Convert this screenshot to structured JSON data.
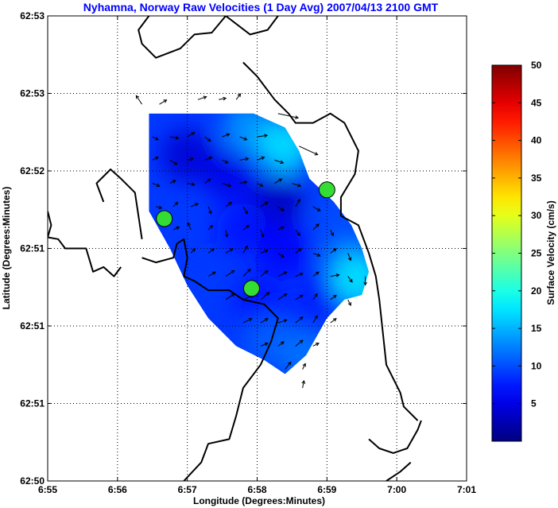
{
  "chart_data": {
    "type": "vector_field_map",
    "title": "Nyhamna, Norway Raw Velocities (1 Day Avg) 2007/04/13 2100 GMT",
    "title_color": "#0000ff",
    "xlabel": "Longitude (Degrees:Minutes)",
    "ylabel": "Latitude (Degrees:Minutes)",
    "x_ticks": [
      "6:55",
      "6:56",
      "6:57",
      "6:58",
      "6:59",
      "7:00",
      "7:01"
    ],
    "y_ticks": [
      "62:53",
      "62:53",
      "62:52",
      "62:51",
      "62:51",
      "62:51",
      "62:50"
    ],
    "xlim": [
      0,
      6
    ],
    "ylim": [
      0,
      5
    ],
    "grid": true,
    "colorbar": {
      "label": "Surface Velocity (cm/s)",
      "range": [
        0,
        50
      ],
      "ticks": [
        "5",
        "10",
        "15",
        "20",
        "25",
        "30",
        "35",
        "40",
        "45",
        "50"
      ],
      "colormap": "jet"
    },
    "coverage_polygon": [
      [
        1.45,
        3.95
      ],
      [
        2.95,
        3.95
      ],
      [
        3.4,
        3.8
      ],
      [
        3.6,
        3.55
      ],
      [
        3.75,
        3.25
      ],
      [
        4.1,
        3.0
      ],
      [
        4.35,
        2.75
      ],
      [
        4.5,
        2.5
      ],
      [
        4.6,
        2.25
      ],
      [
        4.5,
        2.0
      ],
      [
        4.25,
        1.95
      ],
      [
        4.0,
        1.75
      ],
      [
        3.7,
        1.35
      ],
      [
        3.4,
        1.15
      ],
      [
        3.1,
        1.3
      ],
      [
        2.7,
        1.45
      ],
      [
        2.3,
        1.75
      ],
      [
        2.0,
        2.1
      ],
      [
        1.75,
        2.5
      ],
      [
        1.45,
        2.9
      ]
    ],
    "velocity_blobs": [
      {
        "x": 2.0,
        "y": 3.5,
        "speed": 4
      },
      {
        "x": 2.6,
        "y": 3.3,
        "speed": 5
      },
      {
        "x": 3.3,
        "y": 3.0,
        "speed": 3
      },
      {
        "x": 2.8,
        "y": 2.7,
        "speed": 7
      },
      {
        "x": 3.4,
        "y": 2.5,
        "speed": 6
      },
      {
        "x": 2.4,
        "y": 2.1,
        "speed": 9
      },
      {
        "x": 3.0,
        "y": 1.95,
        "speed": 7
      },
      {
        "x": 3.7,
        "y": 1.8,
        "speed": 8
      },
      {
        "x": 4.1,
        "y": 2.1,
        "speed": 6
      },
      {
        "x": 3.2,
        "y": 1.5,
        "speed": 11
      },
      {
        "x": 2.9,
        "y": 3.8,
        "speed": 14
      },
      {
        "x": 3.4,
        "y": 3.6,
        "speed": 18
      },
      {
        "x": 4.3,
        "y": 2.35,
        "speed": 13
      },
      {
        "x": 4.45,
        "y": 2.15,
        "speed": 18
      },
      {
        "x": 4.15,
        "y": 2.85,
        "speed": 10
      },
      {
        "x": 3.7,
        "y": 1.35,
        "speed": 12
      }
    ],
    "vectors": [
      {
        "x": 1.35,
        "y": 4.05,
        "u": -0.4,
        "v": 0.6
      },
      {
        "x": 1.6,
        "y": 4.05,
        "u": 0.5,
        "v": 0.3
      },
      {
        "x": 2.15,
        "y": 4.1,
        "u": 0.6,
        "v": 0.2
      },
      {
        "x": 2.45,
        "y": 4.1,
        "u": 0.5,
        "v": 0.1
      },
      {
        "x": 2.7,
        "y": 4.1,
        "u": 0.3,
        "v": 0.4
      },
      {
        "x": 3.3,
        "y": 3.95,
        "u": 1.4,
        "v": -0.3
      },
      {
        "x": 3.6,
        "y": 3.6,
        "u": 1.3,
        "v": -0.6
      },
      {
        "x": 1.5,
        "y": 3.7,
        "u": 0.4,
        "v": -0.2
      },
      {
        "x": 1.75,
        "y": 3.7,
        "u": 0.6,
        "v": -0.1
      },
      {
        "x": 2.0,
        "y": 3.7,
        "u": 0.5,
        "v": 0.3
      },
      {
        "x": 2.25,
        "y": 3.7,
        "u": 0.4,
        "v": -0.3
      },
      {
        "x": 2.5,
        "y": 3.7,
        "u": 0.5,
        "v": 0.2
      },
      {
        "x": 2.75,
        "y": 3.7,
        "u": 0.5,
        "v": -0.2
      },
      {
        "x": 3.0,
        "y": 3.7,
        "u": 0.7,
        "v": 0.1
      },
      {
        "x": 1.5,
        "y": 3.45,
        "u": 0.4,
        "v": 0.2
      },
      {
        "x": 1.75,
        "y": 3.45,
        "u": 0.5,
        "v": -0.3
      },
      {
        "x": 2.0,
        "y": 3.45,
        "u": 0.4,
        "v": 0.1
      },
      {
        "x": 2.25,
        "y": 3.45,
        "u": 0.5,
        "v": 0.2
      },
      {
        "x": 2.5,
        "y": 3.45,
        "u": 0.4,
        "v": -0.2
      },
      {
        "x": 2.75,
        "y": 3.45,
        "u": 0.6,
        "v": 0.1
      },
      {
        "x": 3.0,
        "y": 3.45,
        "u": 0.5,
        "v": 0.2
      },
      {
        "x": 3.25,
        "y": 3.45,
        "u": 0.6,
        "v": -0.2
      },
      {
        "x": 1.5,
        "y": 3.2,
        "u": 0.5,
        "v": -0.2
      },
      {
        "x": 1.75,
        "y": 3.2,
        "u": 0.4,
        "v": 0.2
      },
      {
        "x": 2.0,
        "y": 3.2,
        "u": 0.5,
        "v": -0.1
      },
      {
        "x": 2.25,
        "y": 3.2,
        "u": 0.4,
        "v": 0.3
      },
      {
        "x": 2.5,
        "y": 3.2,
        "u": 0.6,
        "v": -0.2
      },
      {
        "x": 2.75,
        "y": 3.2,
        "u": 0.5,
        "v": 0.1
      },
      {
        "x": 3.0,
        "y": 3.2,
        "u": 0.4,
        "v": -0.2
      },
      {
        "x": 3.25,
        "y": 3.2,
        "u": 0.5,
        "v": 0.3
      },
      {
        "x": 3.5,
        "y": 3.2,
        "u": 0.6,
        "v": -0.2
      },
      {
        "x": 1.55,
        "y": 2.95,
        "u": 0.4,
        "v": -0.1
      },
      {
        "x": 1.8,
        "y": 2.95,
        "u": 0.3,
        "v": 0.3
      },
      {
        "x": 2.05,
        "y": 2.95,
        "u": 0.5,
        "v": 0.2
      },
      {
        "x": 2.3,
        "y": 2.95,
        "u": 0.2,
        "v": -0.5
      },
      {
        "x": 2.55,
        "y": 2.95,
        "u": 0.4,
        "v": 0.3
      },
      {
        "x": 2.8,
        "y": 2.95,
        "u": 0.3,
        "v": -0.5
      },
      {
        "x": 3.05,
        "y": 2.95,
        "u": 0.5,
        "v": 0.3
      },
      {
        "x": 3.3,
        "y": 2.95,
        "u": 0.4,
        "v": -0.3
      },
      {
        "x": 3.55,
        "y": 2.95,
        "u": 0.3,
        "v": 0.5
      },
      {
        "x": 3.8,
        "y": 2.95,
        "u": 0.5,
        "v": -0.3
      },
      {
        "x": 1.8,
        "y": 2.7,
        "u": 0.4,
        "v": 0.2
      },
      {
        "x": 2.05,
        "y": 2.7,
        "u": -0.2,
        "v": 0.5
      },
      {
        "x": 2.3,
        "y": 2.7,
        "u": 0.3,
        "v": 0.3
      },
      {
        "x": 2.55,
        "y": 2.7,
        "u": 0.1,
        "v": -0.5
      },
      {
        "x": 2.8,
        "y": 2.7,
        "u": 0.4,
        "v": 0.3
      },
      {
        "x": 3.05,
        "y": 2.7,
        "u": 0.2,
        "v": -0.5
      },
      {
        "x": 3.3,
        "y": 2.7,
        "u": 0.4,
        "v": 0.2
      },
      {
        "x": 3.55,
        "y": 2.7,
        "u": 0.3,
        "v": -0.4
      },
      {
        "x": 3.8,
        "y": 2.7,
        "u": 0.4,
        "v": 0.4
      },
      {
        "x": 4.05,
        "y": 2.7,
        "u": 0.2,
        "v": -0.4
      },
      {
        "x": 2.05,
        "y": 2.45,
        "u": 0.3,
        "v": 0.3
      },
      {
        "x": 2.3,
        "y": 2.45,
        "u": 0.4,
        "v": 0.3
      },
      {
        "x": 2.55,
        "y": 2.45,
        "u": 0.5,
        "v": 0.3
      },
      {
        "x": 2.8,
        "y": 2.45,
        "u": 0.3,
        "v": 0.5
      },
      {
        "x": 3.05,
        "y": 2.45,
        "u": 0.5,
        "v": 0.2
      },
      {
        "x": 3.3,
        "y": 2.45,
        "u": 0.4,
        "v": -0.3
      },
      {
        "x": 3.55,
        "y": 2.45,
        "u": 0.4,
        "v": 0.3
      },
      {
        "x": 3.8,
        "y": 2.45,
        "u": 0.5,
        "v": -0.2
      },
      {
        "x": 4.05,
        "y": 2.45,
        "u": 0.4,
        "v": 0.3
      },
      {
        "x": 4.3,
        "y": 2.45,
        "u": 0.2,
        "v": -0.5
      },
      {
        "x": 2.3,
        "y": 2.2,
        "u": 0.5,
        "v": 0.3
      },
      {
        "x": 2.55,
        "y": 2.2,
        "u": 0.6,
        "v": 0.4
      },
      {
        "x": 2.8,
        "y": 2.2,
        "u": 0.5,
        "v": 0.5
      },
      {
        "x": 3.05,
        "y": 2.2,
        "u": 0.5,
        "v": 0.4
      },
      {
        "x": 3.3,
        "y": 2.2,
        "u": 0.6,
        "v": 0.3
      },
      {
        "x": 3.55,
        "y": 2.2,
        "u": 0.5,
        "v": 0.2
      },
      {
        "x": 3.8,
        "y": 2.2,
        "u": 0.4,
        "v": 0.3
      },
      {
        "x": 4.05,
        "y": 2.2,
        "u": 0.6,
        "v": 0.1
      },
      {
        "x": 4.3,
        "y": 2.2,
        "u": 0.3,
        "v": -0.4
      },
      {
        "x": 4.55,
        "y": 2.2,
        "u": 0.0,
        "v": -0.6
      },
      {
        "x": 2.55,
        "y": 1.95,
        "u": 0.6,
        "v": 0.4
      },
      {
        "x": 2.8,
        "y": 1.95,
        "u": 0.7,
        "v": 0.3
      },
      {
        "x": 3.05,
        "y": 1.95,
        "u": 0.6,
        "v": 0.5
      },
      {
        "x": 3.3,
        "y": 1.95,
        "u": 0.6,
        "v": 0.4
      },
      {
        "x": 3.55,
        "y": 1.95,
        "u": 0.5,
        "v": 0.3
      },
      {
        "x": 3.8,
        "y": 1.95,
        "u": 0.3,
        "v": 0.4
      },
      {
        "x": 4.05,
        "y": 1.95,
        "u": 0.4,
        "v": 0.3
      },
      {
        "x": 4.3,
        "y": 1.95,
        "u": 0.2,
        "v": -0.4
      },
      {
        "x": 2.8,
        "y": 1.7,
        "u": 0.6,
        "v": 0.3
      },
      {
        "x": 3.05,
        "y": 1.7,
        "u": 0.5,
        "v": 0.3
      },
      {
        "x": 3.3,
        "y": 1.7,
        "u": 0.6,
        "v": 0.2
      },
      {
        "x": 3.55,
        "y": 1.7,
        "u": 0.5,
        "v": 0.4
      },
      {
        "x": 3.8,
        "y": 1.7,
        "u": 0.3,
        "v": 0.5
      },
      {
        "x": 4.05,
        "y": 1.7,
        "u": 0.4,
        "v": 0.3
      },
      {
        "x": 3.05,
        "y": 1.45,
        "u": 0.5,
        "v": 0.2
      },
      {
        "x": 3.3,
        "y": 1.45,
        "u": 0.4,
        "v": 0.3
      },
      {
        "x": 3.55,
        "y": 1.45,
        "u": 0.5,
        "v": 0.4
      },
      {
        "x": 3.8,
        "y": 1.45,
        "u": 0.4,
        "v": 0.2
      },
      {
        "x": 3.4,
        "y": 1.2,
        "u": 0.4,
        "v": 0.5
      },
      {
        "x": 3.65,
        "y": 1.2,
        "u": 0.2,
        "v": 0.4
      },
      {
        "x": 3.65,
        "y": 1.0,
        "u": 0.1,
        "v": 0.5
      }
    ],
    "sites": [
      {
        "x": 1.67,
        "y": 2.82
      },
      {
        "x": 2.92,
        "y": 2.07
      },
      {
        "x": 4.0,
        "y": 3.13
      }
    ],
    "site_color": "#33dd33",
    "coastlines": [
      [
        [
          1.45,
          5.0
        ],
        [
          1.3,
          4.85
        ],
        [
          1.35,
          4.7
        ],
        [
          1.55,
          4.55
        ],
        [
          1.9,
          4.65
        ],
        [
          2.1,
          4.8
        ],
        [
          2.35,
          4.82
        ],
        [
          2.55,
          5.0
        ]
      ],
      [
        [
          2.55,
          5.0
        ],
        [
          2.9,
          4.8
        ],
        [
          3.15,
          4.85
        ],
        [
          3.3,
          5.0
        ]
      ],
      [
        [
          2.8,
          4.5
        ],
        [
          3.0,
          4.35
        ],
        [
          3.25,
          4.1
        ],
        [
          3.45,
          3.95
        ],
        [
          3.55,
          3.85
        ],
        [
          3.8,
          3.85
        ],
        [
          4.05,
          3.95
        ],
        [
          4.25,
          3.85
        ],
        [
          4.35,
          3.7
        ],
        [
          4.45,
          3.55
        ],
        [
          4.4,
          3.3
        ],
        [
          4.2,
          3.05
        ],
        [
          4.2,
          2.85
        ],
        [
          4.45,
          2.75
        ],
        [
          4.6,
          2.45
        ],
        [
          4.7,
          2.2
        ],
        [
          4.75,
          1.95
        ],
        [
          4.8,
          1.6
        ],
        [
          4.85,
          1.25
        ],
        [
          5.05,
          0.95
        ],
        [
          5.1,
          0.8
        ],
        [
          5.3,
          0.65
        ]
      ],
      [
        [
          0.8,
          3.0
        ],
        [
          0.7,
          3.2
        ],
        [
          0.9,
          3.35
        ],
        [
          1.05,
          3.25
        ],
        [
          1.25,
          3.1
        ],
        [
          1.3,
          2.85
        ],
        [
          1.35,
          2.6
        ]
      ],
      [
        [
          0.0,
          2.62
        ],
        [
          0.15,
          2.6
        ],
        [
          0.25,
          2.5
        ],
        [
          0.55,
          2.5
        ],
        [
          0.65,
          2.25
        ],
        [
          0.8,
          2.3
        ],
        [
          0.95,
          2.2
        ],
        [
          1.05,
          2.3
        ]
      ],
      [
        [
          1.35,
          2.4
        ],
        [
          1.55,
          2.35
        ],
        [
          1.8,
          2.4
        ],
        [
          1.85,
          2.55
        ],
        [
          1.95,
          2.6
        ],
        [
          2.0,
          2.4
        ],
        [
          1.95,
          2.2
        ],
        [
          2.1,
          2.15
        ],
        [
          2.3,
          2.05
        ],
        [
          2.6,
          2.05
        ],
        [
          2.8,
          1.95
        ],
        [
          3.1,
          1.9
        ],
        [
          3.3,
          1.75
        ],
        [
          3.2,
          1.5
        ],
        [
          3.05,
          1.25
        ],
        [
          2.8,
          1.0
        ],
        [
          2.7,
          0.7
        ],
        [
          2.6,
          0.45
        ],
        [
          2.3,
          0.4
        ],
        [
          2.2,
          0.2
        ],
        [
          1.95,
          0.0
        ]
      ],
      [
        [
          0.0,
          2.9
        ],
        [
          0.05,
          2.75
        ],
        [
          0.0,
          2.62
        ]
      ],
      [
        [
          4.6,
          0.45
        ],
        [
          4.75,
          0.35
        ],
        [
          4.95,
          0.3
        ],
        [
          5.15,
          0.35
        ],
        [
          5.3,
          0.55
        ],
        [
          5.35,
          0.65
        ]
      ],
      [
        [
          4.85,
          0.0
        ],
        [
          5.05,
          0.1
        ],
        [
          5.2,
          0.2
        ]
      ]
    ]
  }
}
